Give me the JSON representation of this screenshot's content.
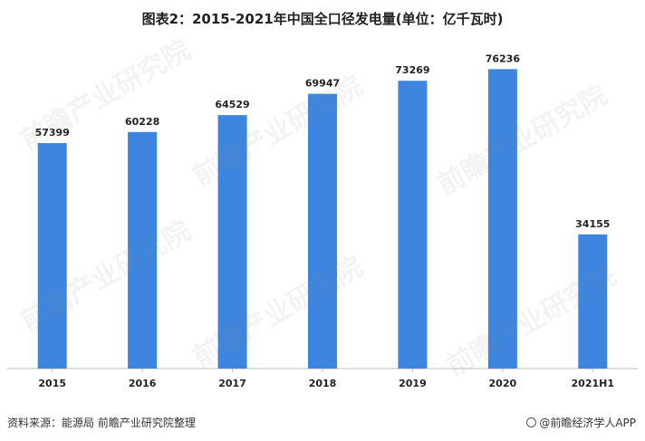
{
  "title": "图表2：2015-2021年中国全口径发电量(单位：亿千瓦时)",
  "footer": {
    "source": "资料来源：能源局 前瞻产业研究院整理",
    "brand": "@前瞻经济学人APP"
  },
  "watermark": "前瞻产业研究院",
  "colors": {
    "bar": "#3d85de",
    "axis": "#bfbfbf",
    "text": "#222222"
  },
  "chart_data": {
    "type": "bar",
    "title": "图表2：2015-2021年中国全口径发电量(单位：亿千瓦时)",
    "categories": [
      "2015",
      "2016",
      "2017",
      "2018",
      "2019",
      "2020",
      "2021H1"
    ],
    "values": [
      57399,
      60228,
      64529,
      69947,
      73269,
      76236,
      34155
    ],
    "data_labels": [
      "57399",
      "60228",
      "64529",
      "69947",
      "73269",
      "76236",
      "34155"
    ],
    "xlabel": "",
    "ylabel": "",
    "ylim": [
      0,
      80000
    ],
    "grid": false,
    "legend": "none"
  }
}
